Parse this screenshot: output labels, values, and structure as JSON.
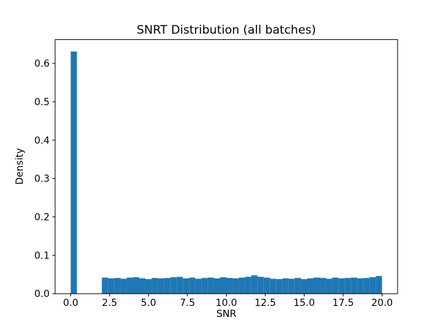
{
  "figure": {
    "background": "#ffffff",
    "bar_color": "#1f77b4",
    "spine_color": "#000000",
    "text_color": "#000000"
  },
  "chart_data": {
    "type": "bar",
    "subtype": "histogram-density",
    "title": "SNRT Distribution (all batches)",
    "xlabel": "SNR",
    "ylabel": "Density",
    "xlim": [
      -1.0,
      21.0
    ],
    "ylim": [
      0.0,
      0.662
    ],
    "grid": false,
    "legend": null,
    "xticks": {
      "values": [
        0.0,
        2.5,
        5.0,
        7.5,
        10.0,
        12.5,
        15.0,
        17.5,
        20.0
      ],
      "labels": [
        "0.0",
        "2.5",
        "5.0",
        "7.5",
        "10.0",
        "12.5",
        "15.0",
        "17.5",
        "20.0"
      ]
    },
    "yticks": {
      "values": [
        0.0,
        0.1,
        0.2,
        0.3,
        0.4,
        0.5,
        0.6
      ],
      "labels": [
        "0.0",
        "0.1",
        "0.2",
        "0.3",
        "0.4",
        "0.5",
        "0.6"
      ]
    },
    "bin_width": 0.4,
    "bin_start": [
      0.0,
      2.0,
      2.4,
      2.8,
      3.2,
      3.6,
      4.0,
      4.4,
      4.8,
      5.2,
      5.6,
      6.0,
      6.4,
      6.8,
      7.2,
      7.6,
      8.0,
      8.4,
      8.8,
      9.2,
      9.6,
      10.0,
      10.4,
      10.8,
      11.2,
      11.6,
      12.0,
      12.4,
      12.8,
      13.2,
      13.6,
      14.0,
      14.4,
      14.8,
      15.2,
      15.6,
      16.0,
      16.4,
      16.8,
      17.2,
      17.6,
      18.0,
      18.4,
      18.8,
      19.2,
      19.6
    ],
    "density": [
      0.631,
      0.042,
      0.04,
      0.041,
      0.039,
      0.042,
      0.043,
      0.04,
      0.038,
      0.041,
      0.04,
      0.041,
      0.043,
      0.044,
      0.04,
      0.042,
      0.039,
      0.041,
      0.042,
      0.04,
      0.043,
      0.041,
      0.04,
      0.042,
      0.044,
      0.048,
      0.044,
      0.042,
      0.039,
      0.038,
      0.04,
      0.039,
      0.041,
      0.038,
      0.04,
      0.042,
      0.041,
      0.039,
      0.042,
      0.04,
      0.041,
      0.042,
      0.04,
      0.041,
      0.043,
      0.046
    ]
  }
}
